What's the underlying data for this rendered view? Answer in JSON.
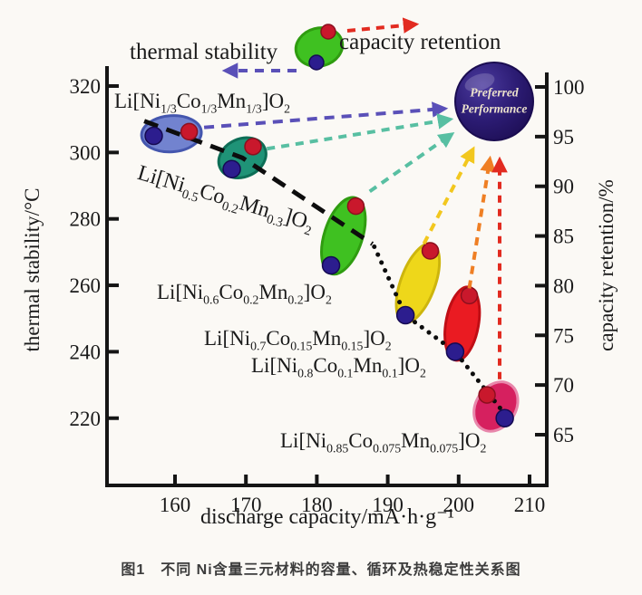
{
  "page": {
    "background": "#fbf9f5"
  },
  "legend": {
    "thermal_label": "thermal stability",
    "retention_label": "capacity retention",
    "thermal_arrow_color": "#5a50b8",
    "retention_arrow_color": "#e22b20"
  },
  "preferred": {
    "line1": "Preferred",
    "line2": "Performance",
    "fill": "#2c1c74"
  },
  "axis_titles": {
    "x": "discharge capacity/mA·h·g⁻¹",
    "left": "thermal stability/°C",
    "right": "capacity retention/%"
  },
  "caption": "图1　不同 Ni含量三元材料的容量、循环及热稳定性关系图",
  "dot_colors": {
    "thermal_dot": "#2c1d8e",
    "thermal_dot_edge": "#150a52",
    "retention_dot": "#c9182c",
    "retention_dot_edge": "#8c0f1e"
  },
  "arrow_colors": {
    "purple": "#5a50b8",
    "teal": "#58bfa2",
    "yellow": "#f2c71e",
    "orange": "#ef7f24",
    "red": "#e22b20"
  },
  "chart_data": {
    "type": "scatter",
    "title": "图1　不同 Ni含量三元材料的容量、循环及热稳定性关系图",
    "xlabel": "discharge capacity/mA·h·g⁻¹",
    "ylabel_left": "thermal stability/°C",
    "ylabel_right": "capacity retention/%",
    "x_ticks": [
      160,
      170,
      180,
      190,
      200,
      210
    ],
    "y_left_ticks": [
      320,
      300,
      280,
      260,
      240,
      220
    ],
    "y_right_ticks": [
      100,
      95,
      90,
      85,
      80,
      75,
      70,
      65
    ],
    "grid": false,
    "trend": "dashed black line through low-Ni materials becoming dotted toward high-Ni materials",
    "preferred_node": {
      "label": "Preferred Performance"
    },
    "materials": [
      {
        "formula": "Li[Ni~1/3~Co~1/3~Mn~1/3~]O~2~",
        "thermal_point": {
          "capacity": 157,
          "stability_c": 305
        },
        "retention_point": {
          "capacity": 162,
          "retention_pct": 95.5
        },
        "color": "#7283cf",
        "edge": "#4456ae"
      },
      {
        "formula": "Li[Ni~0.5~Co~0.2~Mn~0.3~]O~2~",
        "thermal_point": {
          "capacity": 168,
          "stability_c": 295
        },
        "retention_point": {
          "capacity": 171,
          "retention_pct": 94
        },
        "color": "#1f9377",
        "edge": "#0d6e56"
      },
      {
        "formula": "Li[Ni~0.6~Co~0.2~Mn~0.2~]O~2~",
        "thermal_point": {
          "capacity": 182,
          "stability_c": 266
        },
        "retention_point": {
          "capacity": 185.5,
          "retention_pct": 88
        },
        "color": "#3fc121",
        "edge": "#2f9c10"
      },
      {
        "formula": "Li[Ni~0.7~Co~0.15~Mn~0.15~]O~2~",
        "thermal_point": {
          "capacity": 192.5,
          "stability_c": 251
        },
        "retention_point": {
          "capacity": 196,
          "retention_pct": 83.5
        },
        "color": "#eed71a",
        "edge": "#cdb50d"
      },
      {
        "formula": "Li[Ni~0.8~Co~0.1~Mn~0.1~]O~2~",
        "thermal_point": {
          "capacity": 199.5,
          "stability_c": 240
        },
        "retention_point": {
          "capacity": 201.5,
          "retention_pct": 79
        },
        "color": "#ea1b22",
        "edge": "#c00e15"
      },
      {
        "formula": "Li[Ni~0.85~Co~0.075~Mn~0.075~]O~2~",
        "thermal_point": {
          "capacity": 206.5,
          "stability_c": 220
        },
        "retention_point": {
          "capacity": 204,
          "retention_pct": 69
        },
        "color": "#d6205f",
        "edge": "#e887ab"
      }
    ]
  }
}
